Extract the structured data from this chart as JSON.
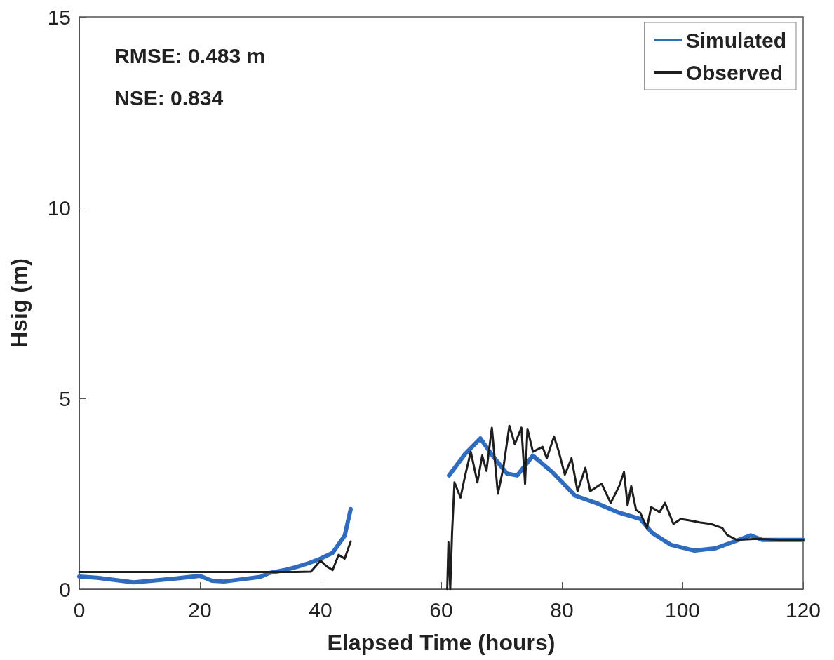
{
  "chart_data": {
    "type": "line",
    "xlabel": "Elapsed Time (hours)",
    "ylabel": "Hsig (m)",
    "annotations": [
      "RMSE: 0.483 m",
      "NSE: 0.834"
    ],
    "xlim": [
      0,
      120
    ],
    "xticks": [
      0,
      20,
      40,
      60,
      80,
      100,
      120
    ],
    "ylim": [
      0,
      15
    ],
    "yticks": [
      0,
      5,
      10,
      15
    ],
    "grid": false,
    "legend": "top right",
    "marker": "none",
    "line_style": "solid",
    "series": [
      {
        "name": "Simulated",
        "color": "#2f6cc0",
        "x": [
          0,
          3,
          6,
          9,
          12,
          16,
          20,
          22,
          24,
          27,
          30,
          31.4,
          34,
          36,
          38,
          40,
          42,
          44,
          45,
          53,
          61.3,
          64,
          66.5,
          68.5,
          70.9,
          72.6,
          75.2,
          78.4,
          82.2,
          86,
          89.2,
          93,
          95,
          98.1,
          102,
          105.5,
          108.6,
          111.3,
          113.2,
          116,
          120
        ],
        "values": [
          0.33,
          0.3,
          0.24,
          0.18,
          0.22,
          0.28,
          0.35,
          0.22,
          0.2,
          0.26,
          0.32,
          0.42,
          0.5,
          0.58,
          0.68,
          0.8,
          0.95,
          1.4,
          2.1,
          null,
          2.98,
          3.55,
          3.95,
          3.5,
          3.03,
          2.98,
          3.5,
          3.07,
          2.45,
          2.24,
          2.02,
          1.84,
          1.47,
          1.16,
          1.01,
          1.07,
          1.25,
          1.41,
          1.29,
          1.29,
          1.29
        ]
      },
      {
        "name": "Observed",
        "color": "#1e1e1e",
        "x": [
          0,
          10,
          20,
          30,
          36,
          38.4,
          40,
          41,
          42,
          43,
          44,
          45,
          53,
          61,
          61.2,
          61.5,
          61.8,
          62.2,
          63.2,
          64,
          64.9,
          66,
          66.8,
          67.5,
          68.4,
          69.4,
          70.3,
          71.3,
          72.2,
          73.3,
          73.9,
          74.3,
          75.2,
          76.8,
          77.5,
          78.7,
          79.5,
          80.5,
          81.6,
          82.6,
          83.9,
          84.7,
          86.6,
          88.1,
          89.5,
          90.3,
          90.9,
          91.5,
          92.3,
          93,
          94.1,
          94.8,
          96.2,
          97.1,
          98.5,
          99.7,
          101.2,
          102.8,
          104.7,
          106.6,
          107.4,
          109,
          112.4,
          116.3,
          120
        ],
        "values": [
          0.45,
          0.45,
          0.45,
          0.45,
          0.45,
          0.46,
          0.75,
          0.6,
          0.5,
          0.9,
          0.8,
          1.25,
          null,
          0,
          1.23,
          0,
          1.47,
          2.8,
          2.4,
          3.0,
          3.6,
          2.8,
          3.5,
          3.1,
          4.23,
          2.5,
          3.18,
          4.28,
          3.8,
          4.23,
          2.76,
          4.2,
          3.6,
          3.73,
          3.43,
          4.0,
          3.6,
          3.0,
          3.43,
          2.57,
          3.18,
          2.57,
          2.76,
          2.26,
          2.7,
          3.07,
          2.2,
          2.7,
          2.08,
          2.0,
          1.6,
          2.15,
          2.02,
          2.26,
          1.71,
          1.84,
          1.8,
          1.75,
          1.71,
          1.6,
          1.42,
          1.29,
          1.32,
          1.29,
          1.29
        ]
      }
    ]
  }
}
